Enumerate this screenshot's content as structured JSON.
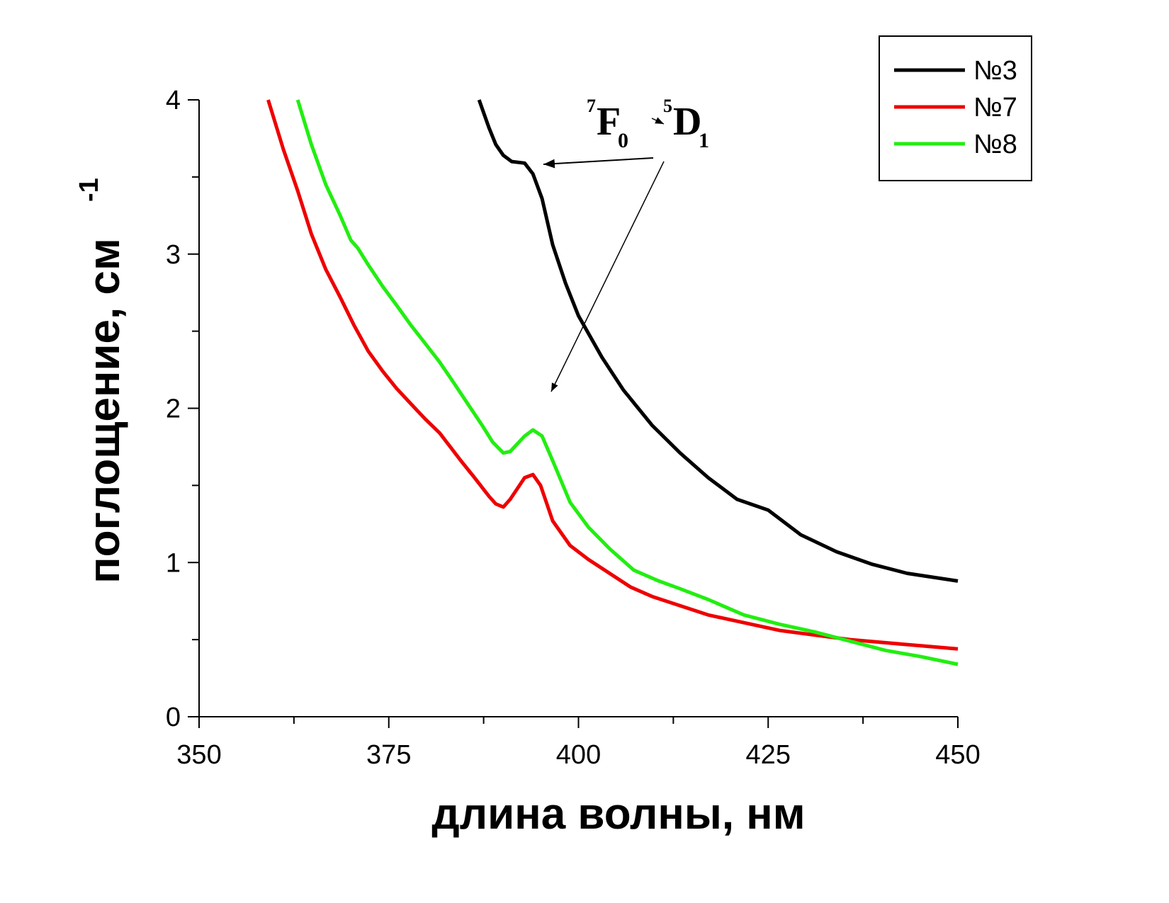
{
  "chart_data": {
    "type": "line",
    "title": "",
    "xlabel": "длина волны, нм",
    "ylabel": "поглощение, см",
    "ylabel_superscript": "-1",
    "xlim": [
      350,
      450
    ],
    "ylim": [
      0,
      4
    ],
    "xticks": [
      350,
      375,
      400,
      425,
      450
    ],
    "yticks": [
      0,
      1,
      2,
      3,
      4
    ],
    "grid": false,
    "legend_position": "top-right",
    "annotation": {
      "term1": "F",
      "term1_sup": "7",
      "term1_sub": "0",
      "term2": "D",
      "term2_sup": "5",
      "term2_sub": "1"
    },
    "series": [
      {
        "name": "№3",
        "color": "#000000",
        "x": [
          386.9,
          388.2,
          389.1,
          390.1,
          391.2,
          392.9,
          394.0,
          395.2,
          396.6,
          398.3,
          400.0,
          403.1,
          405.9,
          409.7,
          413.4,
          417.1,
          420.9,
          425.0,
          429.3,
          434.0,
          438.6,
          443.3,
          450.0
        ],
        "y": [
          4.0,
          3.82,
          3.71,
          3.64,
          3.6,
          3.59,
          3.52,
          3.36,
          3.06,
          2.81,
          2.6,
          2.33,
          2.12,
          1.89,
          1.71,
          1.55,
          1.41,
          1.34,
          1.18,
          1.07,
          0.99,
          0.93,
          0.88
        ]
      },
      {
        "name": "№7",
        "color": "#ee0000",
        "x": [
          359.1,
          361.1,
          363.0,
          364.8,
          366.7,
          368.6,
          370.4,
          372.3,
          374.2,
          376.0,
          377.9,
          379.8,
          381.7,
          383.1,
          384.5,
          386.3,
          388.2,
          389.1,
          390.1,
          391.0,
          392.9,
          394.0,
          395.0,
          396.6,
          398.9,
          401.3,
          404.1,
          406.9,
          409.7,
          413.4,
          417.1,
          421.8,
          426.5,
          431.1,
          435.8,
          440.5,
          445.1,
          450.0
        ],
        "y": [
          4.0,
          3.68,
          3.41,
          3.13,
          2.9,
          2.72,
          2.54,
          2.37,
          2.24,
          2.13,
          2.03,
          1.93,
          1.84,
          1.75,
          1.66,
          1.55,
          1.43,
          1.38,
          1.36,
          1.41,
          1.55,
          1.57,
          1.5,
          1.27,
          1.11,
          1.02,
          0.93,
          0.84,
          0.78,
          0.72,
          0.66,
          0.61,
          0.56,
          0.53,
          0.5,
          0.48,
          0.46,
          0.44
        ]
      },
      {
        "name": "№8",
        "color": "#22ee11",
        "x": [
          363.0,
          364.8,
          366.7,
          368.6,
          370.0,
          370.9,
          372.3,
          374.2,
          376.0,
          377.9,
          379.8,
          381.7,
          383.5,
          385.4,
          387.3,
          388.7,
          390.1,
          391.0,
          392.9,
          394.0,
          395.2,
          396.6,
          398.9,
          401.3,
          404.1,
          407.3,
          410.6,
          413.4,
          417.1,
          421.8,
          426.5,
          431.1,
          435.8,
          440.5,
          445.1,
          450.0
        ],
        "y": [
          4.0,
          3.71,
          3.45,
          3.25,
          3.09,
          3.04,
          2.93,
          2.79,
          2.67,
          2.54,
          2.42,
          2.3,
          2.17,
          2.03,
          1.89,
          1.78,
          1.71,
          1.72,
          1.82,
          1.86,
          1.82,
          1.66,
          1.39,
          1.23,
          1.09,
          0.95,
          0.88,
          0.83,
          0.76,
          0.66,
          0.6,
          0.55,
          0.49,
          0.43,
          0.39,
          0.34
        ]
      }
    ]
  }
}
